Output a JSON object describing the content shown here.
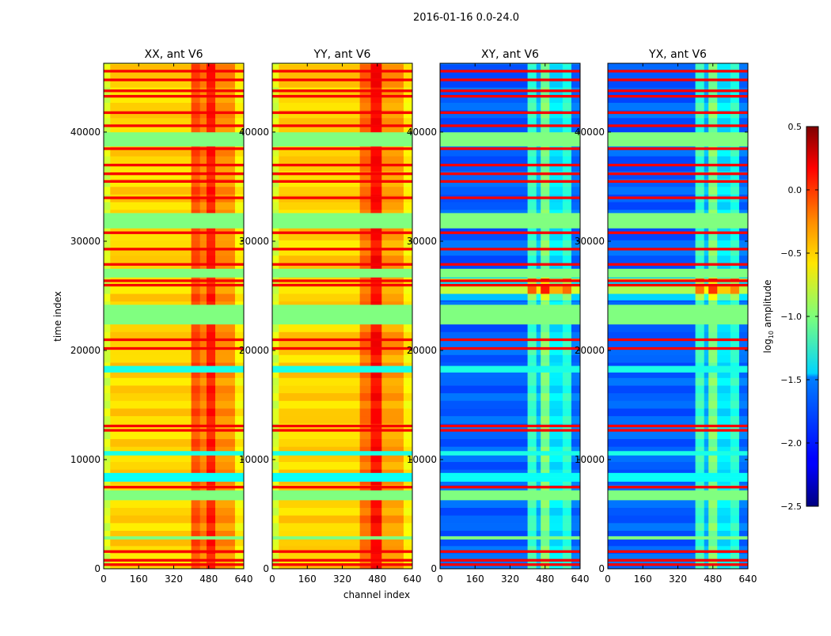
{
  "chart_data": {
    "type": "heatmap",
    "title": "2016-01-16 0.0-24.0",
    "xlabel": "channel index",
    "ylabel": "time index",
    "xlim": [
      0,
      640
    ],
    "ylim": [
      0,
      46300
    ],
    "xticks": [
      0,
      160,
      320,
      480,
      640
    ],
    "yticks": [
      0,
      10000,
      20000,
      30000,
      40000
    ],
    "colormap": "jet",
    "colorbar": {
      "label_prefix": "log",
      "label_sub": "10",
      "label_suffix": " amplitude",
      "range": [
        -2.5,
        0.5
      ],
      "ticks": [
        0.5,
        0.0,
        -0.5,
        -1.0,
        -1.5,
        -2.0,
        -2.5
      ],
      "tick_labels": [
        "0.5",
        "0.0",
        "−0.5",
        "−1.0",
        "−1.5",
        "−2.0",
        "−2.5"
      ]
    },
    "flag_bands": [
      [
        38700,
        40000,
        -1.0
      ],
      [
        31200,
        32600,
        -1.0
      ],
      [
        26700,
        27500,
        -1.0
      ],
      [
        22400,
        24200,
        -1.0
      ],
      [
        6300,
        7200,
        -1.0
      ],
      [
        2700,
        3000,
        -1.0
      ],
      [
        18000,
        18600,
        -1.3
      ],
      [
        8000,
        8800,
        -1.35
      ],
      [
        10400,
        10800,
        -1.3
      ]
    ],
    "rfi_lines": [
      45600,
      44800,
      43800,
      43300,
      41800,
      40600,
      38500,
      37000,
      36200,
      35500,
      34000,
      30800,
      29300,
      27900,
      26400,
      26000,
      21000,
      20200,
      13100,
      12700,
      7500,
      1600,
      800,
      400
    ],
    "panels": [
      {
        "title": "XX, ant V6",
        "columns": [
          [
            0,
            30,
            -0.75
          ],
          [
            30,
            400,
            -0.5
          ],
          [
            400,
            440,
            -0.1
          ],
          [
            440,
            470,
            -0.25
          ],
          [
            470,
            510,
            0.05
          ],
          [
            510,
            600,
            -0.3
          ],
          [
            600,
            640,
            -0.6
          ]
        ],
        "special_band": null
      },
      {
        "title": "YY, ant V6",
        "columns": [
          [
            0,
            30,
            -0.75
          ],
          [
            30,
            400,
            -0.5
          ],
          [
            400,
            450,
            -0.2
          ],
          [
            450,
            500,
            0.1
          ],
          [
            500,
            600,
            -0.35
          ],
          [
            600,
            640,
            -0.6
          ]
        ],
        "special_band": null
      },
      {
        "title": "XY, ant V6",
        "columns": [
          [
            0,
            400,
            -1.85
          ],
          [
            400,
            440,
            -1.2
          ],
          [
            440,
            460,
            -1.6
          ],
          [
            460,
            500,
            -1.0
          ],
          [
            500,
            560,
            -1.45
          ],
          [
            560,
            600,
            -1.25
          ],
          [
            600,
            640,
            -1.8
          ]
        ],
        "special_band": [
          24600,
          26700,
          1.4
        ]
      },
      {
        "title": "YX, ant V6",
        "columns": [
          [
            0,
            400,
            -1.85
          ],
          [
            400,
            440,
            -1.2
          ],
          [
            440,
            460,
            -1.6
          ],
          [
            460,
            500,
            -1.0
          ],
          [
            500,
            560,
            -1.45
          ],
          [
            560,
            600,
            -1.25
          ],
          [
            600,
            640,
            -1.8
          ]
        ],
        "special_band": [
          24600,
          26700,
          1.4
        ]
      }
    ]
  }
}
